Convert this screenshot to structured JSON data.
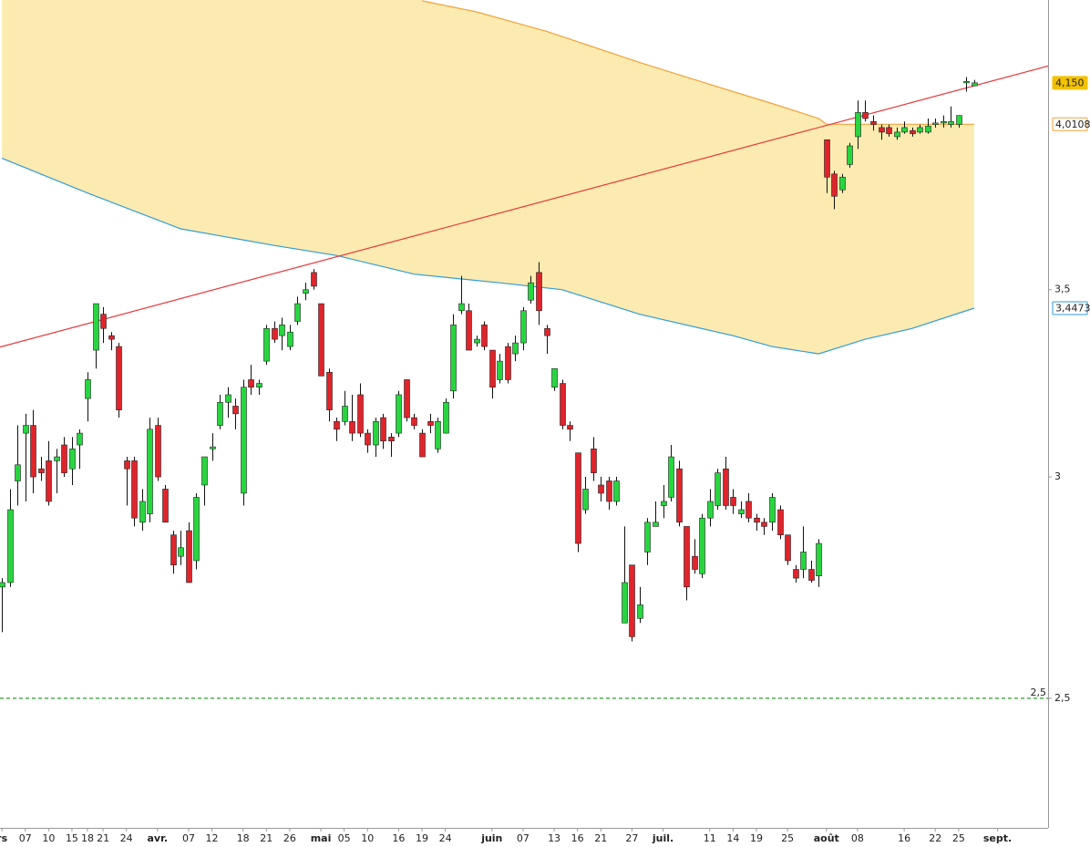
{
  "chart_data": {
    "type": "candlestick",
    "log_scale": true,
    "ylim": [
      2.247,
      4.443
    ],
    "yticks": [
      {
        "value": 2.5,
        "label": "2,5"
      },
      3,
      {
        "value": 3.5,
        "label": "3,5"
      }
    ],
    "xlim": [
      -0.25,
      134.5
    ],
    "xticks": [
      {
        "value": 0,
        "label": "rs"
      },
      {
        "value": 3,
        "label": "07"
      },
      {
        "value": 6,
        "label": "10"
      },
      {
        "value": 9,
        "label": "15"
      },
      {
        "value": 11,
        "label": "18"
      },
      {
        "value": 13,
        "label": "21"
      },
      {
        "value": 16,
        "label": "24"
      },
      {
        "value": 20,
        "label": "avr."
      },
      {
        "value": 24,
        "label": "07"
      },
      {
        "value": 27,
        "label": "12"
      },
      {
        "value": 31,
        "label": "18"
      },
      {
        "value": 34,
        "label": "21"
      },
      {
        "value": 37,
        "label": "26"
      },
      {
        "value": 41,
        "label": "mai"
      },
      {
        "value": 44,
        "label": "05"
      },
      {
        "value": 47,
        "label": "10"
      },
      {
        "value": 51,
        "label": "16"
      },
      {
        "value": 54,
        "label": "19"
      },
      {
        "value": 57,
        "label": "24"
      },
      {
        "value": 63,
        "label": "juin"
      },
      {
        "value": 67,
        "label": "07"
      },
      {
        "value": 71,
        "label": "13"
      },
      {
        "value": 74,
        "label": "16"
      },
      {
        "value": 77,
        "label": "21"
      },
      {
        "value": 81,
        "label": "27"
      },
      {
        "value": 85,
        "label": "juil."
      },
      {
        "value": 91,
        "label": "11"
      },
      {
        "value": 94,
        "label": "14"
      },
      {
        "value": 97,
        "label": "19"
      },
      {
        "value": 101,
        "label": "25"
      },
      {
        "value": 106,
        "label": "août"
      },
      {
        "value": 110,
        "label": "08"
      },
      {
        "value": 116,
        "label": "16"
      },
      {
        "value": 120,
        "label": "22"
      },
      {
        "value": 123,
        "label": "25"
      },
      {
        "value": 128,
        "label": "sept."
      }
    ],
    "up_color": "#27d63f",
    "down_color": "#e0242b",
    "candles": {
      "open": [
        2.74,
        2.75,
        2.99,
        3.11,
        3.13,
        3.02,
        3.04,
        3.04,
        3.08,
        3.02,
        3.08,
        3.2,
        3.33,
        3.43,
        3.37,
        3.34,
        3.04,
        3.04,
        2.89,
        2.91,
        3.13,
        2.97,
        2.86,
        2.81,
        2.87,
        2.8,
        2.98,
        3.07,
        3.13,
        3.19,
        3.18,
        2.96,
        3.25,
        3.23,
        3.3,
        3.39,
        3.37,
        3.34,
        3.41,
        3.49,
        3.55,
        3.46,
        3.27,
        3.14,
        3.14,
        3.14,
        3.21,
        3.11,
        3.08,
        3.15,
        3.1,
        3.11,
        3.25,
        3.15,
        3.11,
        3.14,
        3.07,
        3.11,
        3.22,
        3.44,
        3.44,
        3.35,
        3.4,
        3.33,
        3.25,
        3.34,
        3.32,
        3.35,
        3.47,
        3.55,
        3.39,
        3.23,
        3.24,
        3.13,
        3.06,
        2.92,
        3.07,
        2.98,
        2.99,
        2.94,
        2.66,
        2.79,
        2.67,
        2.82,
        2.88,
        2.93,
        2.95,
        3.02,
        2.88,
        2.81,
        2.77,
        2.9,
        2.93,
        3.02,
        2.95,
        2.91,
        2.94,
        2.9,
        2.89,
        2.89,
        2.92,
        2.86,
        2.78,
        2.78,
        2.78,
        2.765,
        3.96,
        3.85,
        3.8,
        3.88,
        3.97,
        4.05,
        4.02,
        4.0,
        4.0,
        3.97,
        3.985,
        3.99,
        3.985,
        3.985,
        4.01,
        4.015,
        4.01,
        4.01,
        4.15,
        4.14
      ],
      "high": [
        2.76,
        2.97,
        3.13,
        3.16,
        3.17,
        3.05,
        3.09,
        3.07,
        3.1,
        3.1,
        3.12,
        3.27,
        3.46,
        3.45,
        3.38,
        3.35,
        3.05,
        3.05,
        2.97,
        3.15,
        3.15,
        2.98,
        2.87,
        2.87,
        2.89,
        2.96,
        3.05,
        3.11,
        3.21,
        3.23,
        3.2,
        3.25,
        3.29,
        3.25,
        3.4,
        3.41,
        3.42,
        3.4,
        3.48,
        3.52,
        3.56,
        3.46,
        3.28,
        3.15,
        3.22,
        3.21,
        3.24,
        3.12,
        3.15,
        3.16,
        3.11,
        3.22,
        3.25,
        3.16,
        3.12,
        3.16,
        3.15,
        3.2,
        3.43,
        3.54,
        3.46,
        3.37,
        3.41,
        3.33,
        3.32,
        3.35,
        3.37,
        3.45,
        3.54,
        3.58,
        3.4,
        3.28,
        3.25,
        3.14,
        3.06,
        3.0,
        3.1,
        3.0,
        3.0,
        3.0,
        2.88,
        2.79,
        2.74,
        2.9,
        2.94,
        2.98,
        3.08,
        3.04,
        2.88,
        2.85,
        2.91,
        2.97,
        3.02,
        3.05,
        2.97,
        2.94,
        2.96,
        2.91,
        2.9,
        2.96,
        2.93,
        2.86,
        2.79,
        2.88,
        2.8,
        2.85,
        3.96,
        3.86,
        3.85,
        3.95,
        4.09,
        4.09,
        4.04,
        4.01,
        4.01,
        4.0,
        4.02,
        4.0,
        4.01,
        4.03,
        4.03,
        4.04,
        4.07,
        4.04,
        4.17,
        4.16
      ],
      "low": [
        2.64,
        2.74,
        2.93,
        2.94,
        2.96,
        2.99,
        2.93,
        2.96,
        3.0,
        2.98,
        3.02,
        3.14,
        3.28,
        3.35,
        3.33,
        3.15,
        2.93,
        2.88,
        2.87,
        2.89,
        2.99,
        2.89,
        2.77,
        2.79,
        2.75,
        2.78,
        2.93,
        3.04,
        3.12,
        3.15,
        3.12,
        2.93,
        3.21,
        3.21,
        3.29,
        3.35,
        3.33,
        3.33,
        3.4,
        3.47,
        3.5,
        3.26,
        3.14,
        3.09,
        3.13,
        3.09,
        3.1,
        3.06,
        3.05,
        3.07,
        3.05,
        3.1,
        3.14,
        3.12,
        3.05,
        3.11,
        3.06,
        3.11,
        3.2,
        3.43,
        3.33,
        3.34,
        3.33,
        3.2,
        3.24,
        3.24,
        3.3,
        3.33,
        3.46,
        3.4,
        3.32,
        3.22,
        3.12,
        3.09,
        2.82,
        2.91,
        2.99,
        2.94,
        2.92,
        2.93,
        2.66,
        2.62,
        2.66,
        2.79,
        2.88,
        2.9,
        2.94,
        2.88,
        2.71,
        2.77,
        2.76,
        2.88,
        2.92,
        2.92,
        2.91,
        2.9,
        2.89,
        2.87,
        2.86,
        2.87,
        2.85,
        2.79,
        2.75,
        2.76,
        2.75,
        2.74,
        3.79,
        3.74,
        3.79,
        3.87,
        3.93,
        4.02,
        3.99,
        3.96,
        3.97,
        3.96,
        3.98,
        3.97,
        3.98,
        3.98,
        4.0,
        4.0,
        4.0,
        4.0,
        4.12,
        4.14
      ],
      "close": [
        2.75,
        2.92,
        3.03,
        3.13,
        3.0,
        3.01,
        2.94,
        3.05,
        3.01,
        3.07,
        3.11,
        3.25,
        3.46,
        3.39,
        3.36,
        3.17,
        3.02,
        2.9,
        2.94,
        3.12,
        3.0,
        2.89,
        2.79,
        2.83,
        2.75,
        2.95,
        3.05,
        3.075,
        3.19,
        3.21,
        3.16,
        3.23,
        3.23,
        3.24,
        3.39,
        3.36,
        3.4,
        3.38,
        3.46,
        3.5,
        3.51,
        3.26,
        3.17,
        3.12,
        3.18,
        3.11,
        3.11,
        3.08,
        3.14,
        3.09,
        3.09,
        3.21,
        3.15,
        3.13,
        3.05,
        3.13,
        3.14,
        3.19,
        3.4,
        3.46,
        3.33,
        3.36,
        3.34,
        3.23,
        3.3,
        3.25,
        3.35,
        3.44,
        3.52,
        3.44,
        3.37,
        3.28,
        3.13,
        3.12,
        2.84,
        2.97,
        3.01,
        2.96,
        2.94,
        2.99,
        2.75,
        2.63,
        2.7,
        2.89,
        2.89,
        2.94,
        3.05,
        2.89,
        2.74,
        2.78,
        2.9,
        2.94,
        3.01,
        2.93,
        2.93,
        2.92,
        2.9,
        2.89,
        2.88,
        2.95,
        2.86,
        2.8,
        2.76,
        2.82,
        2.755,
        2.84,
        3.84,
        3.78,
        3.84,
        3.94,
        4.05,
        4.03,
        4.01,
        3.985,
        3.98,
        3.985,
        4.0,
        3.98,
        4.0,
        4.005,
        4.015,
        4.02,
        4.02,
        4.04,
        4.155,
        4.15
      ]
    },
    "band_fill": "#fcebb0",
    "upper_band": {
      "color": "#f2a23a",
      "x": [
        54,
        61,
        70,
        82,
        94,
        99,
        105,
        106,
        125
      ],
      "values": [
        4.44,
        4.4,
        4.33,
        4.22,
        4.12,
        4.08,
        4.03,
        4.0108,
        4.0108
      ]
    },
    "lower_band": {
      "color": "#2f9be0",
      "x": [
        0,
        11,
        23,
        35,
        43,
        53,
        64,
        72,
        82,
        94,
        99,
        105,
        111,
        117,
        125
      ],
      "values": [
        3.9,
        3.79,
        3.68,
        3.63,
        3.6,
        3.545,
        3.52,
        3.5,
        3.43,
        3.37,
        3.34,
        3.32,
        3.36,
        3.39,
        3.4473
      ]
    },
    "trendline": {
      "color": "#e8383c",
      "x": [
        0,
        125
      ],
      "values": [
        3.34,
        4.14
      ]
    },
    "support": {
      "value": 2.5,
      "label": "2,5",
      "color": "#2a9d2a"
    },
    "price_tags": [
      {
        "value": 4.15,
        "label": "4,150",
        "color": "#f2c200",
        "filled": true
      },
      {
        "value": 4.0108,
        "label": "4,0108",
        "color": "#f2a23a",
        "filled": false
      },
      {
        "value": 3.4473,
        "label": "3,4473",
        "color": "#2f9be0",
        "filled": false
      }
    ]
  }
}
